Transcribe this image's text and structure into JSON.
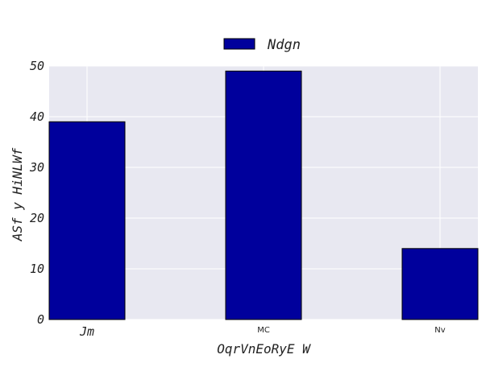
{
  "chart_data": {
    "type": "bar",
    "categories": [
      "Jm",
      "MC",
      "Nv"
    ],
    "series": [
      {
        "name": "Ndgn",
        "values": [
          39,
          49,
          14
        ],
        "color": "#00009c"
      }
    ],
    "xlabel": "OqrVnEoRyE W",
    "ylabel": "ASf y HiNLWf",
    "ylim": [
      0,
      50
    ],
    "yticks": [
      0,
      10,
      20,
      30,
      40,
      50
    ],
    "grid": true,
    "legend_position": "top-center",
    "plot_background": "#e8e8f1",
    "grid_color": "#ffffff"
  }
}
